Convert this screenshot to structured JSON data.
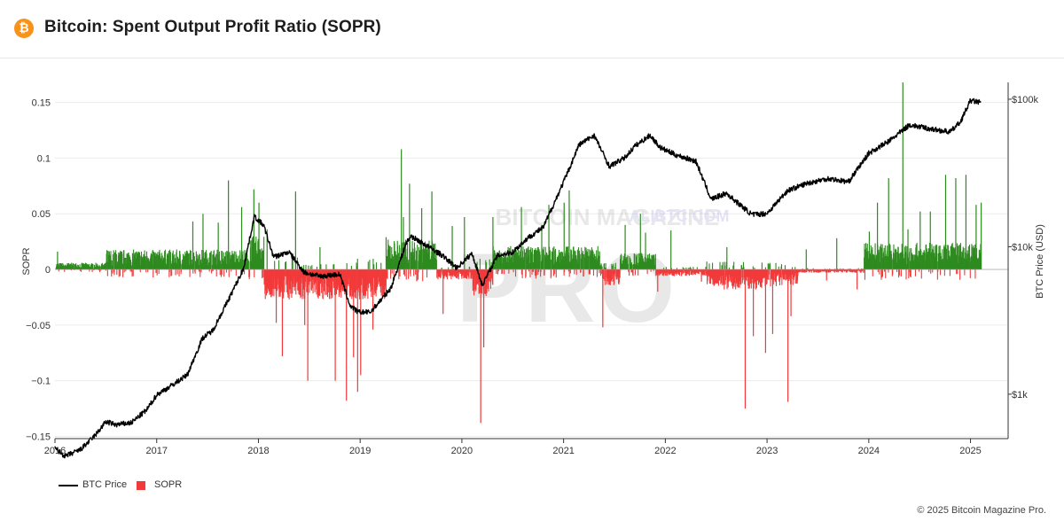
{
  "header": {
    "title": "Bitcoin: Spent Output Profit Ratio (SOPR)",
    "logo_icon": "bitcoin-logo-icon",
    "logo_glyph": "₿"
  },
  "watermark": {
    "text_small": "BITCOIN MAGAZINE",
    "text_large": "PRO",
    "overlay": "ALIBTC.COM"
  },
  "colors": {
    "price_line": "#000000",
    "sopr_positive": "#2e8b1f",
    "sopr_negative": "#f23a3a",
    "grid": "#ececec",
    "logo": "#f7931a"
  },
  "legend": {
    "items": [
      {
        "label": "BTC Price",
        "marker": "line"
      },
      {
        "label": "SOPR",
        "marker": "box"
      }
    ]
  },
  "copyright": "© 2025 Bitcoin Magazine Pro.",
  "chart_data": {
    "type": "area",
    "title": "",
    "xlabel": "",
    "ylabel": "SOPR",
    "y2label": "BTC Price (USD)",
    "y2scale": "log",
    "ylim": [
      -0.152,
      0.168
    ],
    "y2lim": [
      500,
      130000
    ],
    "xlim": [
      2016.0,
      2025.37
    ],
    "xticks": [
      "2016",
      "2017",
      "2018",
      "2019",
      "2020",
      "2021",
      "2022",
      "2023",
      "2024",
      "2025"
    ],
    "yticks": [
      "0.15",
      "0.1",
      "0.05",
      "0",
      "−0.05",
      "−0.1",
      "−0.15"
    ],
    "y2ticks": [
      "$100k",
      "$10k",
      "$1k"
    ],
    "y2tick_values": [
      100000,
      10000,
      1000
    ],
    "grid": true,
    "legend_position": "bottom-left",
    "series": [
      {
        "name": "BTC Price",
        "kind": "line",
        "x": [
          2016.0,
          2016.1,
          2016.25,
          2016.4,
          2016.5,
          2016.6,
          2016.75,
          2016.9,
          2017.0,
          2017.15,
          2017.3,
          2017.45,
          2017.55,
          2017.7,
          2017.85,
          2017.96,
          2018.05,
          2018.15,
          2018.3,
          2018.45,
          2018.6,
          2018.8,
          2018.9,
          2018.98,
          2019.1,
          2019.3,
          2019.45,
          2019.5,
          2019.65,
          2019.8,
          2019.95,
          2020.1,
          2020.2,
          2020.35,
          2020.5,
          2020.65,
          2020.8,
          2020.95,
          2021.05,
          2021.15,
          2021.3,
          2021.45,
          2021.6,
          2021.7,
          2021.85,
          2021.95,
          2022.1,
          2022.3,
          2022.45,
          2022.6,
          2022.85,
          2023.0,
          2023.2,
          2023.4,
          2023.6,
          2023.8,
          2024.0,
          2024.2,
          2024.4,
          2024.6,
          2024.8,
          2024.9,
          2025.0,
          2025.1
        ],
        "y": [
          430,
          380,
          420,
          530,
          650,
          620,
          640,
          780,
          990,
          1150,
          1350,
          2400,
          2700,
          4300,
          7000,
          16000,
          14000,
          8500,
          9200,
          6700,
          6300,
          6500,
          4000,
          3600,
          3600,
          5200,
          10500,
          11800,
          10200,
          8800,
          7200,
          9000,
          5500,
          8700,
          9200,
          11500,
          13500,
          23000,
          33000,
          49000,
          57000,
          35000,
          40000,
          48000,
          57000,
          47000,
          42000,
          38000,
          21000,
          23000,
          16500,
          16800,
          24000,
          27000,
          29000,
          27500,
          43000,
          52000,
          67000,
          63000,
          60000,
          70000,
          98000,
          95000
        ]
      },
      {
        "name": "SOPR",
        "kind": "bar",
        "x": [
          2016.02,
          2016.15,
          2016.5,
          2016.9,
          2017.1,
          2017.35,
          2017.45,
          2017.6,
          2017.7,
          2017.83,
          2017.95,
          2018.0,
          2018.08,
          2018.17,
          2018.23,
          2018.36,
          2018.45,
          2018.48,
          2018.6,
          2018.75,
          2018.86,
          2018.93,
          2018.97,
          2019.0,
          2019.12,
          2019.25,
          2019.4,
          2019.42,
          2019.48,
          2019.6,
          2019.7,
          2019.81,
          2019.9,
          2020.02,
          2020.18,
          2020.21,
          2020.3,
          2020.45,
          2020.58,
          2020.78,
          2020.85,
          2021.0,
          2021.05,
          2021.25,
          2021.38,
          2021.6,
          2021.75,
          2021.8,
          2021.92,
          2022.05,
          2022.35,
          2022.48,
          2022.6,
          2022.78,
          2022.86,
          2022.98,
          2023.05,
          2023.2,
          2023.23,
          2023.38,
          2023.58,
          2023.68,
          2023.88,
          2024.0,
          2024.08,
          2024.19,
          2024.33,
          2024.38,
          2024.5,
          2024.6,
          2024.75,
          2024.85,
          2024.95,
          2025.05,
          2025.1
        ],
        "y": [
          0.016,
          0.005,
          0.007,
          0.012,
          0.014,
          0.043,
          0.05,
          0.042,
          0.08,
          0.056,
          0.072,
          0.06,
          0.036,
          -0.048,
          -0.078,
          0.07,
          -0.05,
          -0.1,
          0.02,
          -0.1,
          -0.118,
          -0.079,
          -0.11,
          -0.095,
          -0.054,
          0.029,
          0.108,
          0.047,
          0.077,
          0.055,
          0.07,
          -0.04,
          0.039,
          0.047,
          -0.138,
          -0.07,
          0.047,
          0.02,
          0.056,
          0.04,
          0.058,
          0.06,
          0.071,
          0.018,
          -0.052,
          0.04,
          0.05,
          0.033,
          -0.02,
          0.035,
          -0.011,
          -0.014,
          0.02,
          -0.125,
          -0.06,
          -0.075,
          -0.058,
          -0.119,
          -0.042,
          0.018,
          -0.01,
          0.028,
          -0.018,
          0.034,
          0.06,
          0.082,
          0.168,
          0.036,
          0.052,
          0.052,
          0.085,
          0.082,
          0.085,
          0.058,
          0.06
        ]
      }
    ]
  }
}
